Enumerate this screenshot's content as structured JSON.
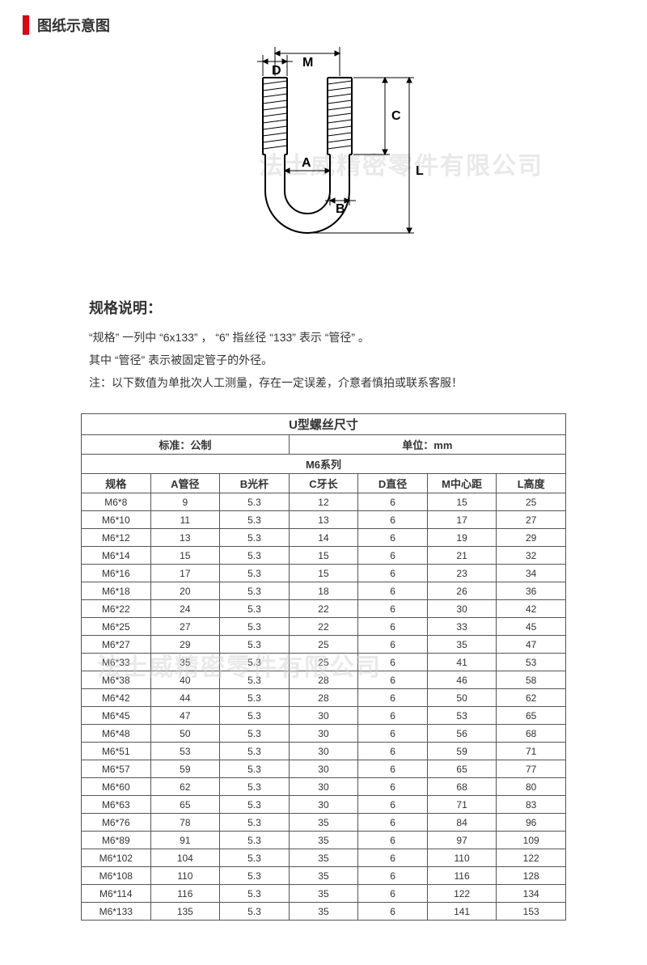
{
  "header": {
    "title": "图纸示意图"
  },
  "diagram": {
    "labels": {
      "D": "D",
      "M": "M",
      "A": "A",
      "B": "B",
      "C": "C",
      "L": "L"
    },
    "colors": {
      "stroke": "#000000",
      "fill": "#ffffff"
    }
  },
  "watermark": {
    "text": "法士威精密零件有限公司"
  },
  "spec": {
    "title": "规格说明：",
    "line1": "“规格” 一列中 “6x133” ， “6” 指丝径 “133” 表示 “管径” 。",
    "line2": "其中 “管径” 表示被固定管子的外径。",
    "note": "注：以下数值为单批次人工测量，存在一定误差，介意者慎拍或联系客服！"
  },
  "table": {
    "title": "U型螺丝尺寸",
    "standard_label": "标准：公制",
    "unit_label": "单位：mm",
    "series": "M6系列",
    "columns": [
      "规格",
      "A管径",
      "B光杆",
      "C牙长",
      "D直径",
      "M中心距",
      "L高度"
    ],
    "rows": [
      [
        "M6*8",
        "9",
        "5.3",
        "12",
        "6",
        "15",
        "25"
      ],
      [
        "M6*10",
        "11",
        "5.3",
        "13",
        "6",
        "17",
        "27"
      ],
      [
        "M6*12",
        "13",
        "5.3",
        "14",
        "6",
        "19",
        "29"
      ],
      [
        "M6*14",
        "15",
        "5.3",
        "15",
        "6",
        "21",
        "32"
      ],
      [
        "M6*16",
        "17",
        "5.3",
        "15",
        "6",
        "23",
        "34"
      ],
      [
        "M6*18",
        "20",
        "5.3",
        "18",
        "6",
        "26",
        "36"
      ],
      [
        "M6*22",
        "24",
        "5.3",
        "22",
        "6",
        "30",
        "42"
      ],
      [
        "M6*25",
        "27",
        "5.3",
        "22",
        "6",
        "33",
        "45"
      ],
      [
        "M6*27",
        "29",
        "5.3",
        "25",
        "6",
        "35",
        "47"
      ],
      [
        "M6*33",
        "35",
        "5.3",
        "25",
        "6",
        "41",
        "53"
      ],
      [
        "M6*38",
        "40",
        "5.3",
        "28",
        "6",
        "46",
        "58"
      ],
      [
        "M6*42",
        "44",
        "5.3",
        "28",
        "6",
        "50",
        "62"
      ],
      [
        "M6*45",
        "47",
        "5.3",
        "30",
        "6",
        "53",
        "65"
      ],
      [
        "M6*48",
        "50",
        "5.3",
        "30",
        "6",
        "56",
        "68"
      ],
      [
        "M6*51",
        "53",
        "5.3",
        "30",
        "6",
        "59",
        "71"
      ],
      [
        "M6*57",
        "59",
        "5.3",
        "30",
        "6",
        "65",
        "77"
      ],
      [
        "M6*60",
        "62",
        "5.3",
        "30",
        "6",
        "68",
        "80"
      ],
      [
        "M6*63",
        "65",
        "5.3",
        "30",
        "6",
        "71",
        "83"
      ],
      [
        "M6*76",
        "78",
        "5.3",
        "35",
        "6",
        "84",
        "96"
      ],
      [
        "M6*89",
        "91",
        "5.3",
        "35",
        "6",
        "97",
        "109"
      ],
      [
        "M6*102",
        "104",
        "5.3",
        "35",
        "6",
        "110",
        "122"
      ],
      [
        "M6*108",
        "110",
        "5.3",
        "35",
        "6",
        "116",
        "128"
      ],
      [
        "M6*114",
        "116",
        "5.3",
        "35",
        "6",
        "122",
        "134"
      ],
      [
        "M6*133",
        "135",
        "5.3",
        "35",
        "6",
        "141",
        "153"
      ]
    ],
    "border_color": "#555555",
    "text_color": "#333333"
  }
}
